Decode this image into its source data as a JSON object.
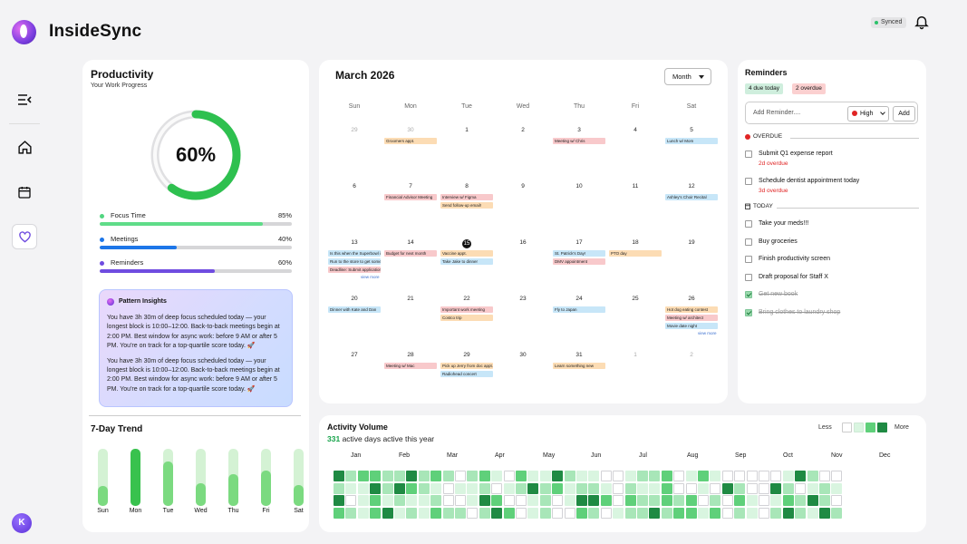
{
  "app": {
    "title": "InsideSync",
    "status": "Synced",
    "user_initial": "K"
  },
  "colors": {
    "accent": "#2ec04f",
    "focus": "#52d680",
    "meetings": "#1d76e8",
    "reminders": "#6f4ce0",
    "danger": "#e02424"
  },
  "nav": [
    "collapse-icon",
    "home-icon",
    "calendar-icon",
    "heart-icon"
  ],
  "productivity": {
    "title": "Productivity",
    "subtitle": "Your Work Progress",
    "progress": "60%",
    "progress_value": 60,
    "metrics": [
      {
        "label": "Focus Time",
        "value": "85%",
        "pct": 85
      },
      {
        "label": "Meetings",
        "value": "40%",
        "pct": 40
      },
      {
        "label": "Reminders",
        "value": "60%",
        "pct": 60
      }
    ],
    "insights_title": "Pattern Insights",
    "insights": [
      "You have 3h 30m of deep focus scheduled today — your longest block is 10:00–12:00. Back-to-back meetings begin at 2:00 PM. Best window for async work: before 9 AM or after 5 PM. You're on track for a top-quartile score today. 🚀",
      "You have 3h 30m of deep focus scheduled today — your longest block is 10:00–12:00. Back-to-back meetings begin at 2:00 PM. Best window for async work: before 9 AM or after 5 PM. You're on track for a top-quartile score today. 🚀"
    ]
  },
  "trend": {
    "title": "7-Day Trend",
    "days": [
      "Sun",
      "Mon",
      "Tue",
      "Wed",
      "Thu",
      "Fri",
      "Sat"
    ],
    "values": [
      0.35,
      1.0,
      0.78,
      0.4,
      0.55,
      0.62,
      0.37
    ]
  },
  "calendar": {
    "title": "March 2026",
    "view": "Month",
    "weekdays": [
      "Sun",
      "Mon",
      "Tue",
      "Wed",
      "Thu",
      "Fri",
      "Sat"
    ],
    "today": "15",
    "weeks": [
      [
        {
          "d": "29",
          "m": true,
          "ev": []
        },
        {
          "d": "30",
          "m": true,
          "ev": [
            [
              "Groomers appt.",
              "o"
            ]
          ]
        },
        {
          "d": "1",
          "ev": []
        },
        {
          "d": "2",
          "ev": []
        },
        {
          "d": "3",
          "ev": [
            [
              "Meeting w/ Chris",
              "r"
            ]
          ]
        },
        {
          "d": "4",
          "ev": []
        },
        {
          "d": "5",
          "ev": [
            [
              "Lunch w/ Mom",
              "b"
            ]
          ]
        }
      ],
      [
        {
          "d": "6",
          "ev": []
        },
        {
          "d": "7",
          "ev": [
            [
              "Financial Advisor Meeting",
              "r"
            ]
          ]
        },
        {
          "d": "8",
          "ev": [
            [
              "Interview w/ Figma",
              "r"
            ],
            [
              "Send follow-up email!",
              "o"
            ]
          ]
        },
        {
          "d": "9",
          "ev": []
        },
        {
          "d": "10",
          "ev": []
        },
        {
          "d": "11",
          "ev": []
        },
        {
          "d": "12",
          "ev": [
            [
              "Ashley's Choir Recital",
              "b"
            ]
          ]
        }
      ],
      [
        {
          "d": "13",
          "ev": [
            [
              "Is this when the Superbowl is?",
              "b"
            ],
            [
              "Run to the store to get some",
              "b"
            ],
            [
              "Deadline: Submit application!",
              "r"
            ]
          ],
          "more": "view more"
        },
        {
          "d": "14",
          "ev": [
            [
              "Budget for next month",
              "r"
            ]
          ]
        },
        {
          "d": "15",
          "ev": [
            [
              "Vaccine appt.",
              "o"
            ],
            [
              "Take Jake to dinner",
              "b"
            ]
          ]
        },
        {
          "d": "16",
          "ev": []
        },
        {
          "d": "17",
          "ev": [
            [
              "St. Patrick's Day!",
              "b"
            ],
            [
              "DMV appointment",
              "r"
            ]
          ]
        },
        {
          "d": "18",
          "ev": [
            [
              "PTO day",
              "o"
            ]
          ]
        },
        {
          "d": "19",
          "ev": []
        }
      ],
      [
        {
          "d": "20",
          "ev": [
            [
              "Dinner with Kate and Dan",
              "b"
            ]
          ]
        },
        {
          "d": "21",
          "ev": []
        },
        {
          "d": "22",
          "ev": [
            [
              "Important work meeting",
              "r"
            ],
            [
              "Costco trip",
              "o"
            ]
          ]
        },
        {
          "d": "23",
          "ev": []
        },
        {
          "d": "24",
          "ev": [
            [
              "Fly to Japan",
              "b"
            ]
          ]
        },
        {
          "d": "25",
          "ev": []
        },
        {
          "d": "26",
          "ev": [
            [
              "Hot dog eating contest",
              "o"
            ],
            [
              "Meeting w/ architect",
              "r"
            ],
            [
              "Movie date night",
              "b"
            ]
          ],
          "more": "view more"
        }
      ],
      [
        {
          "d": "27",
          "ev": []
        },
        {
          "d": "28",
          "ev": [
            [
              "Meeting w/ Mac",
              "r"
            ]
          ]
        },
        {
          "d": "29",
          "ev": [
            [
              "Pick up Jerry from doc appt.",
              "o"
            ],
            [
              "Radiohead concert",
              "b"
            ]
          ]
        },
        {
          "d": "30",
          "ev": []
        },
        {
          "d": "31",
          "ev": [
            [
              "Learn something new",
              "o"
            ]
          ]
        },
        {
          "d": "1",
          "m": true,
          "ev": []
        },
        {
          "d": "2",
          "m": true,
          "ev": []
        }
      ]
    ]
  },
  "reminders": {
    "title": "Reminders",
    "due_today": "4 due today",
    "overdue_count": "2 overdue",
    "input_placeholder": "Add Reminder....",
    "priority": "High",
    "add_label": "Add",
    "overdue_label": "OVERDUE",
    "today_label": "TODAY",
    "overdue": [
      {
        "text": "Submit Q1 expense report",
        "sub": "2d overdue"
      },
      {
        "text": "Schedule dentist appointment today",
        "sub": "3d overdue"
      }
    ],
    "today": [
      {
        "text": "Take your meds!!!",
        "done": false
      },
      {
        "text": "Buy groceries",
        "done": false
      },
      {
        "text": "Finish productivity screen",
        "done": false
      },
      {
        "text": "Draft proposal for Staff X",
        "done": false
      },
      {
        "text": "Get new book",
        "done": true
      },
      {
        "text": "Bring clothes to laundry shop",
        "done": true
      }
    ]
  },
  "activity": {
    "title": "Activity Volume",
    "count": "331",
    "subtitle": "active days active this year",
    "less": "Less",
    "more": "More",
    "months": [
      "Jan",
      "Feb",
      "Mar",
      "Apr",
      "May",
      "Jun",
      "Jul",
      "Aug",
      "Sep",
      "Oct",
      "Nov",
      "Dec"
    ],
    "levels": [
      [
        4,
        2,
        3,
        3,
        2,
        2,
        4,
        2,
        3,
        2,
        0,
        2,
        3,
        1,
        0,
        3,
        1,
        1,
        4,
        2,
        1,
        1,
        0,
        0,
        1,
        2,
        2,
        3,
        0,
        1,
        3,
        1,
        0,
        0,
        0,
        0,
        0,
        1,
        4,
        2,
        0,
        0
      ],
      [
        2,
        1,
        1,
        4,
        2,
        4,
        3,
        2,
        1,
        0,
        1,
        1,
        2,
        0,
        1,
        2,
        4,
        2,
        3,
        1,
        2,
        2,
        1,
        0,
        2,
        1,
        1,
        3,
        0,
        0,
        1,
        0,
        4,
        2,
        0,
        0,
        4,
        2,
        0,
        1,
        2,
        1
      ],
      [
        4,
        0,
        1,
        3,
        1,
        2,
        1,
        1,
        2,
        0,
        0,
        1,
        4,
        3,
        0,
        0,
        1,
        2,
        0,
        1,
        4,
        4,
        3,
        0,
        3,
        2,
        2,
        3,
        2,
        3,
        0,
        2,
        0,
        3,
        1,
        0,
        1,
        3,
        2,
        4,
        2,
        0
      ],
      [
        3,
        2,
        1,
        3,
        4,
        1,
        2,
        1,
        3,
        2,
        2,
        0,
        2,
        4,
        3,
        0,
        1,
        2,
        0,
        0,
        3,
        2,
        0,
        1,
        2,
        2,
        4,
        2,
        3,
        3,
        1,
        3,
        0,
        2,
        1,
        0,
        2,
        4,
        2,
        1,
        4,
        2
      ]
    ]
  }
}
